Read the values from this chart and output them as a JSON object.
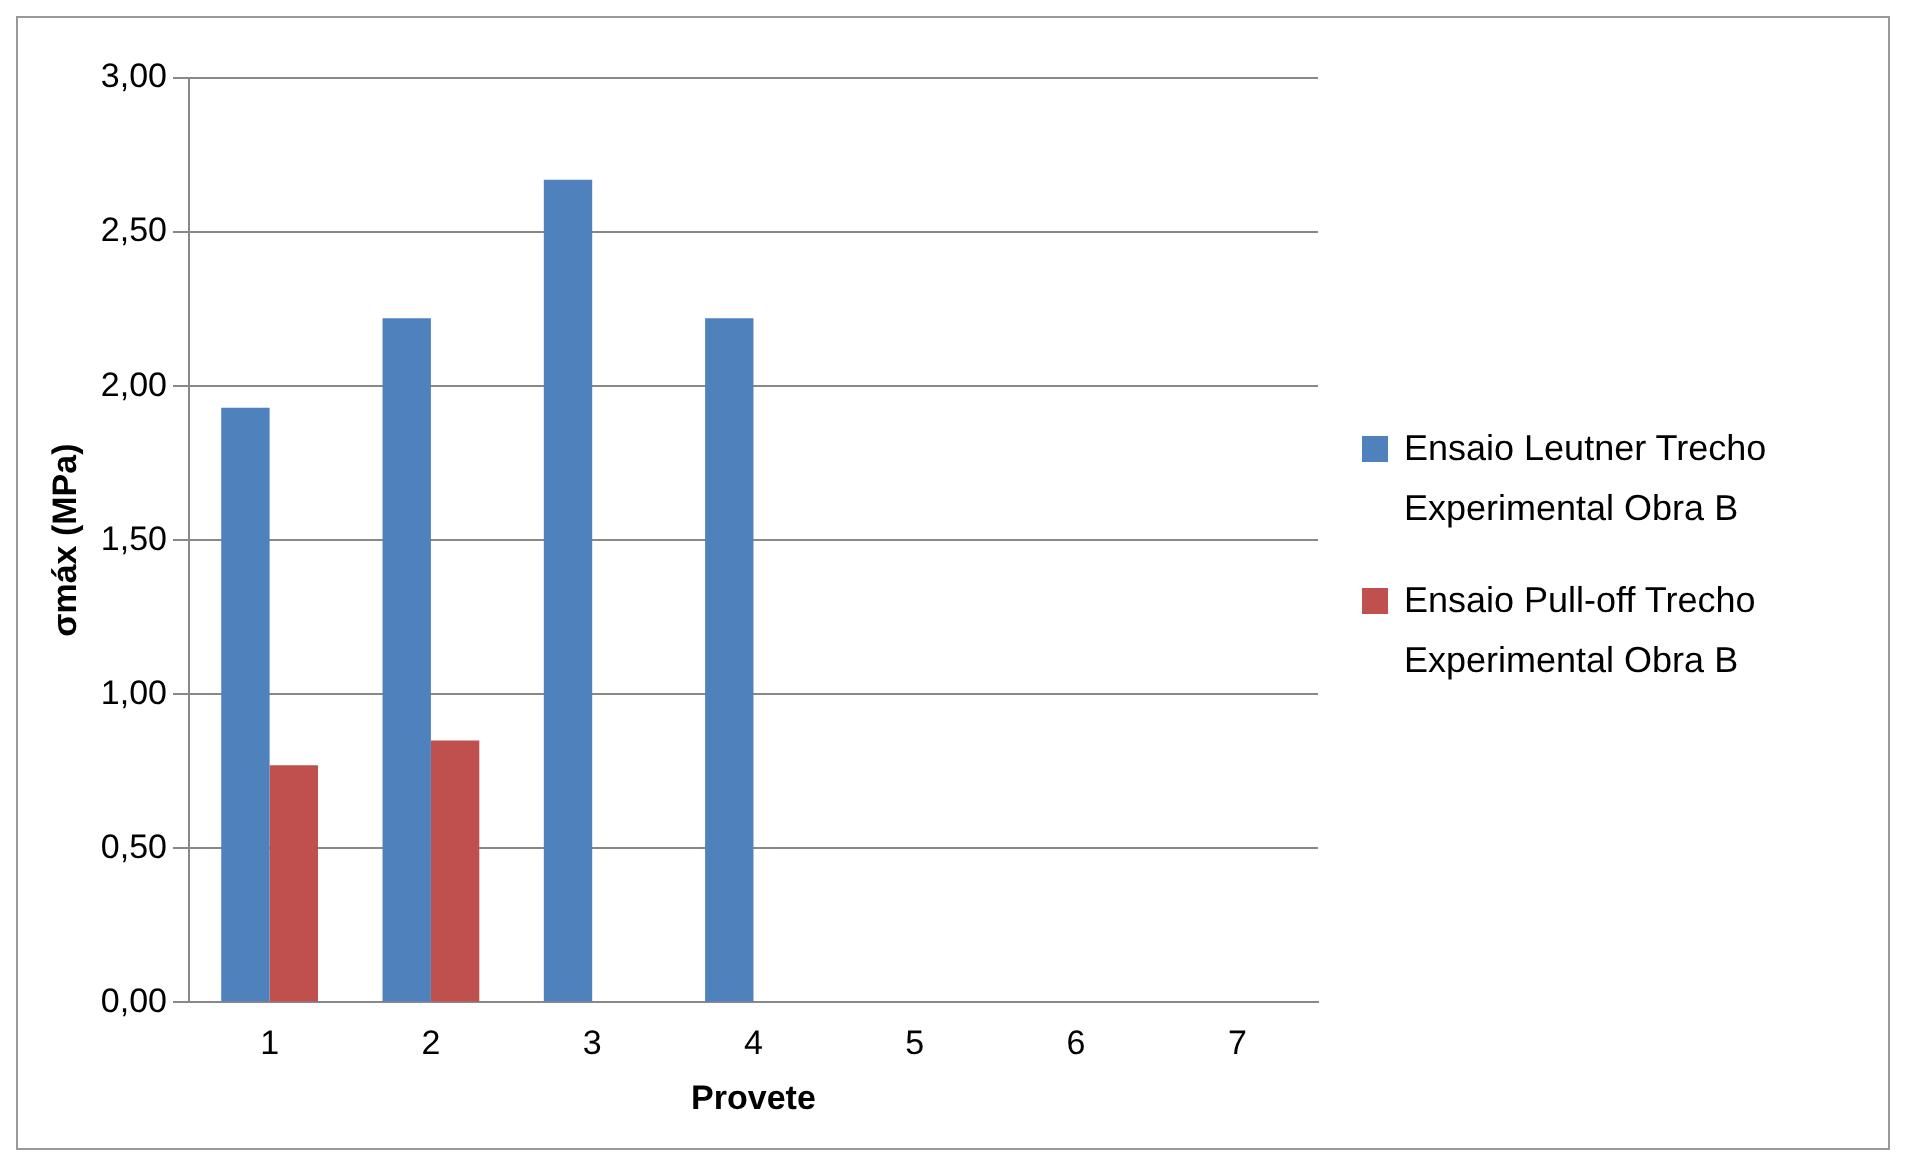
{
  "chart_data": {
    "type": "bar",
    "xlabel": "Provete",
    "ylabel": "σmáx (MPa)",
    "categories": [
      "1",
      "2",
      "3",
      "4",
      "5",
      "6",
      "7"
    ],
    "series": [
      {
        "name": "Ensaio Leutner Trecho Experimental Obra B",
        "color": "#4f81bd",
        "values": [
          1.93,
          2.22,
          2.67,
          2.22,
          null,
          null,
          null
        ]
      },
      {
        "name": "Ensaio Pull-off Trecho Experimental Obra B",
        "color": "#c0504d",
        "values": [
          0.77,
          0.85,
          null,
          null,
          null,
          null,
          null
        ]
      }
    ],
    "ylim": [
      0,
      3
    ],
    "yticks": [
      {
        "value": 0,
        "label": "0,00"
      },
      {
        "value": 0.5,
        "label": "0,50"
      },
      {
        "value": 1,
        "label": "1,00"
      },
      {
        "value": 1.5,
        "label": "1,50"
      },
      {
        "value": 2,
        "label": "2,00"
      },
      {
        "value": 2.5,
        "label": "2,50"
      },
      {
        "value": 3,
        "label": "3,00"
      }
    ],
    "grid": "y",
    "legend": "right"
  }
}
